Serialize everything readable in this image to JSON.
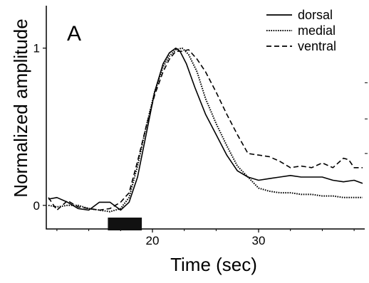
{
  "chart_data": {
    "type": "line",
    "panel_label": "A",
    "xlabel": "Time (sec)",
    "ylabel": "Normalized amplitude",
    "xlim": [
      10,
      40
    ],
    "ylim": [
      -0.15,
      1.27
    ],
    "x_ticks": [
      {
        "value": 20,
        "label": "20"
      },
      {
        "value": 30,
        "label": "30"
      }
    ],
    "x_minor_ticks": [
      11,
      14,
      17,
      23,
      26,
      33,
      36,
      39
    ],
    "y_ticks": [
      {
        "value": 0,
        "label": "0"
      },
      {
        "value": 1,
        "label": "1"
      }
    ],
    "right_minor_ticks": [
      0.33,
      0.55,
      0.78
    ],
    "stimulus_bar": {
      "start": 15.8,
      "end": 19.0
    },
    "legend_position": "top-right",
    "series": [
      {
        "name": "dorsal",
        "dash": "solid",
        "x": [
          10.2,
          11.0,
          12.0,
          13.0,
          14.0,
          15.0,
          16.0,
          17.0,
          17.8,
          18.6,
          19.4,
          20.2,
          21.0,
          21.6,
          22.2,
          22.6,
          23.2,
          24.0,
          25.0,
          26.0,
          27.0,
          28.0,
          29.0,
          30.0,
          31.0,
          32.0,
          33.0,
          34.0,
          35.0,
          36.0,
          37.0,
          38.0,
          39.0,
          39.8
        ],
        "y": [
          0.04,
          0.05,
          0.02,
          -0.02,
          -0.03,
          0.02,
          0.02,
          -0.03,
          0.02,
          0.18,
          0.45,
          0.72,
          0.9,
          0.97,
          1.0,
          0.98,
          0.9,
          0.75,
          0.58,
          0.45,
          0.32,
          0.22,
          0.18,
          0.16,
          0.17,
          0.18,
          0.19,
          0.18,
          0.18,
          0.18,
          0.16,
          0.15,
          0.16,
          0.14
        ]
      },
      {
        "name": "medial",
        "dash": "dotted",
        "x": [
          10.2,
          11.0,
          12.0,
          13.0,
          14.0,
          15.0,
          16.0,
          17.0,
          17.8,
          18.6,
          19.4,
          20.2,
          21.0,
          21.6,
          22.2,
          22.8,
          23.4,
          24.2,
          25.0,
          26.0,
          27.0,
          28.0,
          29.0,
          30.0,
          31.0,
          32.0,
          33.0,
          34.0,
          35.0,
          36.0,
          37.0,
          38.0,
          39.0,
          39.8
        ],
        "y": [
          0.0,
          -0.01,
          0.0,
          0.0,
          -0.02,
          -0.03,
          -0.04,
          -0.02,
          0.05,
          0.25,
          0.5,
          0.72,
          0.88,
          0.95,
          0.99,
          1.0,
          0.96,
          0.85,
          0.68,
          0.52,
          0.38,
          0.25,
          0.18,
          0.11,
          0.09,
          0.08,
          0.08,
          0.07,
          0.07,
          0.06,
          0.06,
          0.05,
          0.05,
          0.05
        ]
      },
      {
        "name": "ventral",
        "dash": "dashed",
        "x": [
          10.2,
          11.0,
          12.0,
          13.0,
          14.0,
          15.0,
          16.0,
          17.0,
          17.8,
          18.6,
          19.4,
          20.2,
          21.0,
          21.6,
          22.2,
          22.8,
          23.4,
          24.2,
          25.0,
          26.0,
          27.0,
          28.0,
          29.0,
          30.0,
          31.0,
          32.0,
          33.0,
          34.0,
          35.0,
          36.0,
          37.0,
          38.0,
          38.5,
          39.0,
          39.8
        ],
        "y": [
          0.05,
          -0.03,
          0.03,
          -0.01,
          -0.02,
          -0.03,
          -0.02,
          0.02,
          0.08,
          0.28,
          0.5,
          0.7,
          0.85,
          0.93,
          0.98,
          0.98,
          0.99,
          0.93,
          0.85,
          0.72,
          0.58,
          0.45,
          0.33,
          0.32,
          0.31,
          0.28,
          0.24,
          0.25,
          0.24,
          0.27,
          0.24,
          0.3,
          0.29,
          0.24,
          0.24
        ]
      }
    ]
  }
}
